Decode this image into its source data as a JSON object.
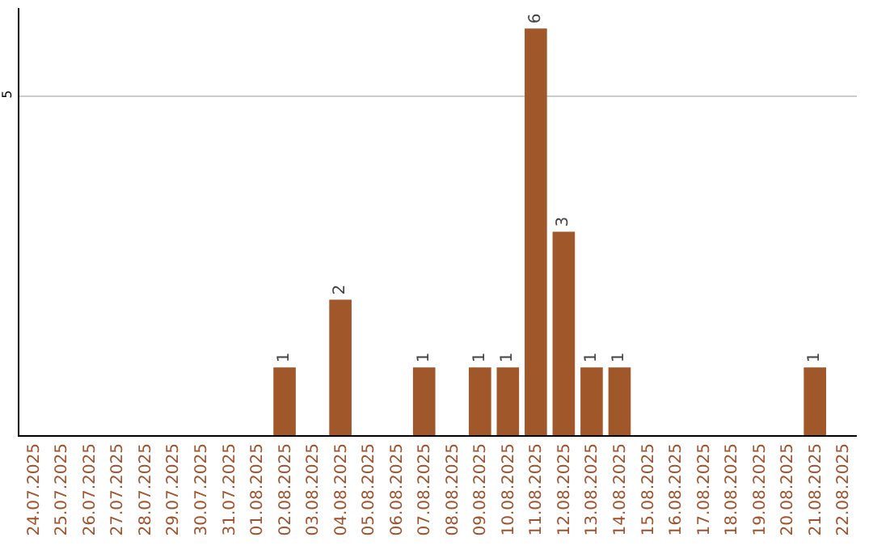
{
  "chart_data": {
    "type": "bar",
    "categories": [
      "24.07.2025",
      "25.07.2025",
      "26.07.2025",
      "27.07.2025",
      "28.07.2025",
      "29.07.2025",
      "30.07.2025",
      "31.07.2025",
      "01.08.2025",
      "02.08.2025",
      "03.08.2025",
      "04.08.2025",
      "05.08.2025",
      "06.08.2025",
      "07.08.2025",
      "08.08.2025",
      "09.08.2025",
      "10.08.2025",
      "11.08.2025",
      "12.08.2025",
      "13.08.2025",
      "14.08.2025",
      "15.08.2025",
      "16.08.2025",
      "17.08.2025",
      "18.08.2025",
      "19.08.2025",
      "20.08.2025",
      "21.08.2025",
      "22.08.2025"
    ],
    "values": [
      0,
      0,
      0,
      0,
      0,
      0,
      0,
      0,
      0,
      1,
      0,
      2,
      0,
      0,
      1,
      0,
      1,
      1,
      6,
      3,
      1,
      1,
      0,
      0,
      0,
      0,
      0,
      0,
      1,
      0
    ],
    "value_labels": [
      null,
      null,
      null,
      null,
      null,
      null,
      null,
      null,
      null,
      "1",
      null,
      "2",
      null,
      null,
      "1",
      null,
      "1",
      "1",
      "6",
      "3",
      "1",
      "1",
      null,
      null,
      null,
      null,
      null,
      null,
      "1",
      null
    ],
    "color": "#a0572a",
    "ylim": [
      0,
      6.3
    ],
    "yticks": [
      5
    ],
    "grid": "y"
  }
}
